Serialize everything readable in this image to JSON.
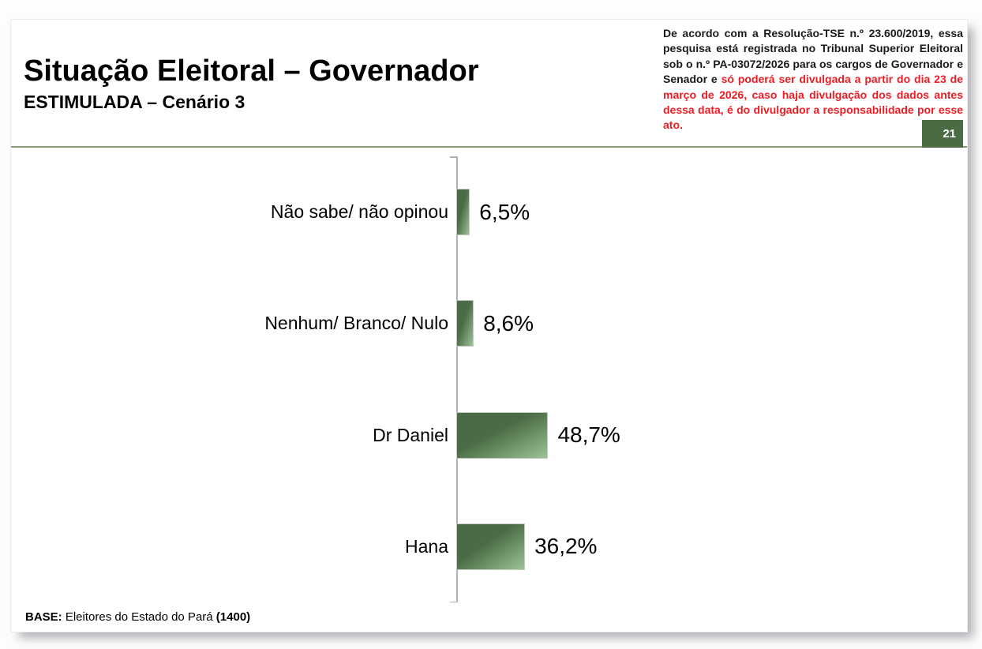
{
  "header": {
    "title": "Situação Eleitoral – Governador",
    "subtitle": "ESTIMULADA – Cenário 3",
    "disclaimer_black": "De acordo com a Resolução-TSE n.º 23.600/2019, essa pesquisa está registrada no Tribunal Superior Eleitoral sob o n.º PA-03072/2026 para os cargos de Governador e Senador e ",
    "disclaimer_red": "só poderá ser divulgada a partir do dia 23 de março de 2026, caso haja divulgação dos dados antes dessa data, é do divulgador a responsabilidade por esse ato.",
    "page_number": "21"
  },
  "footer": {
    "base_label": "BASE:",
    "base_text": " Eleitores do Estado do Pará ",
    "base_count": "(1400)"
  },
  "chart_data": {
    "type": "bar",
    "orientation": "horizontal",
    "categories": [
      "Não sabe/ não opinou",
      "Nenhum/ Branco/ Nulo",
      "Dr Daniel",
      "Hana"
    ],
    "values": [
      6.5,
      8.6,
      48.7,
      36.2
    ],
    "value_labels": [
      "6,5%",
      "8,6%",
      "48,7%",
      "36,2%"
    ],
    "title": "Situação Eleitoral – Governador",
    "subtitle": "ESTIMULADA – Cenário 3",
    "xlabel": "",
    "ylabel": "",
    "xlim": [
      0,
      100
    ],
    "grid": false,
    "legend": false,
    "base_note": "BASE: Eleitores do Estado do Pará (1400)"
  },
  "colors": {
    "bar_dark": "#4a6b45",
    "bar_light": "#9cc297",
    "accent_green": "#4a6b44",
    "divider_green": "#7f9f6a",
    "disclaimer_red": "#ee1c23",
    "axis_gray": "#a9b1bb"
  }
}
